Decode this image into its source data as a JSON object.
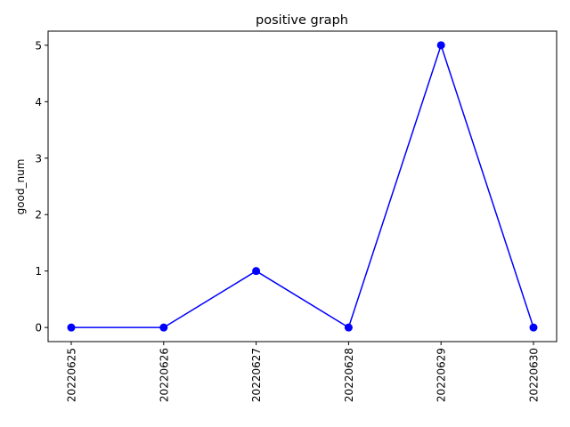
{
  "chart_data": {
    "type": "line",
    "title": "positive graph",
    "xlabel": "",
    "ylabel": "good_num",
    "categories": [
      "20220625",
      "20220626",
      "20220627",
      "20220628",
      "20220629",
      "20220630"
    ],
    "series": [
      {
        "values": [
          0,
          0,
          1,
          0,
          5,
          0
        ],
        "color": "#0000ff",
        "marker": "circle"
      }
    ],
    "ylim": [
      -0.25,
      5.25
    ],
    "yticks": [
      0,
      1,
      2,
      3,
      4,
      5
    ],
    "grid": false,
    "x_tick_rotation": "vertical"
  }
}
